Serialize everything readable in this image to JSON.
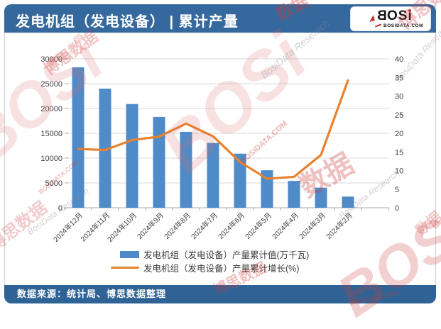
{
  "header": {
    "title": "发电机组（发电设备） | 累计产量",
    "logo": {
      "b": "B",
      "os": "OS",
      "i": "i",
      "domain": "BOSIDATA.COM"
    }
  },
  "footer": {
    "source": "数据来源：统计局、博思数据整理"
  },
  "colors": {
    "header_bg": "#35689C",
    "footer_bg": "#2F6395",
    "bar": "#4E8BC8",
    "line": "#E8822E",
    "gridline": "#D9D9D9",
    "axis_line": "#ABABAB",
    "axis_text": "#404040",
    "watermark_red": "#CE3A3A"
  },
  "chart_data": {
    "type": "bar+line combo",
    "title": "发电机组（发电设备）累计产量",
    "categories": [
      "2024年12月",
      "2024年11月",
      "2024年10月",
      "2024年9月",
      "2024年8月",
      "2024年7月",
      "2024年6月",
      "2024年5月",
      "2024年4月",
      "2024年3月",
      "2024年2月"
    ],
    "series": [
      {
        "name": "发电机组（发电设备）产量累计值(万千瓦)",
        "type": "bar",
        "axis": "left",
        "color": "#4E8BC8",
        "values": [
          28300,
          24000,
          20900,
          18300,
          15300,
          13050,
          10900,
          7550,
          5400,
          4050,
          2250
        ]
      },
      {
        "name": "发电机组（发电设备）产量累计增长(%)",
        "type": "line",
        "axis": "right",
        "color": "#E8822E",
        "values": [
          15.8,
          15.5,
          18.2,
          19.1,
          22.6,
          19.2,
          12.3,
          7.8,
          8.3,
          14.2,
          34.2
        ]
      }
    ],
    "left_axis": {
      "min": 0,
      "max": 30000,
      "step": 5000
    },
    "right_axis": {
      "min": 0,
      "max": 40,
      "step": 5
    },
    "grid": "horizontal",
    "legend_position": "bottom"
  },
  "watermarks": {
    "bosi": "BOSi",
    "domain": "BOSIDATA.COM",
    "cn": "博思数据",
    "research": "BosiData Research",
    "shuju": "数据"
  }
}
